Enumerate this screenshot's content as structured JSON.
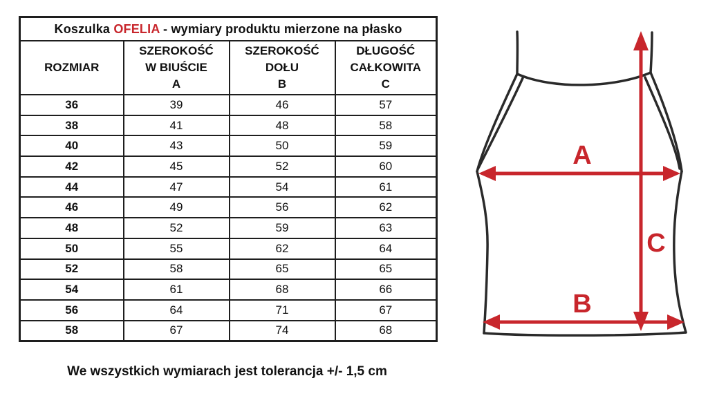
{
  "colors": {
    "accent_red": "#c8262c",
    "line_black": "#1e1e1e"
  },
  "chart_data": {
    "type": "table",
    "title": "Koszulka OFELIA - wymiary produktu mierzone na płasko",
    "columns": [
      "ROZMIAR",
      "SZEROKOŚĆ W BIUŚCIE A",
      "SZEROKOŚĆ DOŁU B",
      "DŁUGOŚĆ CAŁKOWITA C"
    ],
    "rows": [
      [
        36,
        39,
        46,
        57
      ],
      [
        38,
        41,
        48,
        58
      ],
      [
        40,
        43,
        50,
        59
      ],
      [
        42,
        45,
        52,
        60
      ],
      [
        44,
        47,
        54,
        61
      ],
      [
        46,
        49,
        56,
        62
      ],
      [
        48,
        52,
        59,
        63
      ],
      [
        50,
        55,
        62,
        64
      ],
      [
        52,
        58,
        65,
        65
      ],
      [
        54,
        61,
        68,
        66
      ],
      [
        56,
        64,
        71,
        67
      ],
      [
        58,
        67,
        74,
        68
      ]
    ],
    "note": "We wszystkich wymiarach jest tolerancja +/- 1,5 cm"
  },
  "table": {
    "title": {
      "prefix": "Koszulka ",
      "brand": "OFELIA",
      "suffix": " - wymiary produktu mierzone na płasko"
    },
    "headers": [
      {
        "lines": [
          "ROZMIAR"
        ]
      },
      {
        "lines": [
          "SZEROKOŚĆ",
          "W BIUŚCIE",
          "A"
        ]
      },
      {
        "lines": [
          "SZEROKOŚĆ",
          "DOŁU",
          "B"
        ]
      },
      {
        "lines": [
          "DŁUGOŚĆ",
          "CAŁKOWITA",
          "C"
        ]
      }
    ],
    "rows": [
      [
        "36",
        "39",
        "46",
        "57"
      ],
      [
        "38",
        "41",
        "48",
        "58"
      ],
      [
        "40",
        "43",
        "50",
        "59"
      ],
      [
        "42",
        "45",
        "52",
        "60"
      ],
      [
        "44",
        "47",
        "54",
        "61"
      ],
      [
        "46",
        "49",
        "56",
        "62"
      ],
      [
        "48",
        "52",
        "59",
        "63"
      ],
      [
        "50",
        "55",
        "62",
        "64"
      ],
      [
        "52",
        "58",
        "65",
        "65"
      ],
      [
        "54",
        "61",
        "68",
        "66"
      ],
      [
        "56",
        "64",
        "71",
        "67"
      ],
      [
        "58",
        "67",
        "74",
        "68"
      ]
    ]
  },
  "footer": {
    "note": "We wszystkich wymiarach jest tolerancja +/- 1,5 cm"
  },
  "diagram": {
    "labels": {
      "a": "A",
      "b": "B",
      "c": "C"
    }
  }
}
